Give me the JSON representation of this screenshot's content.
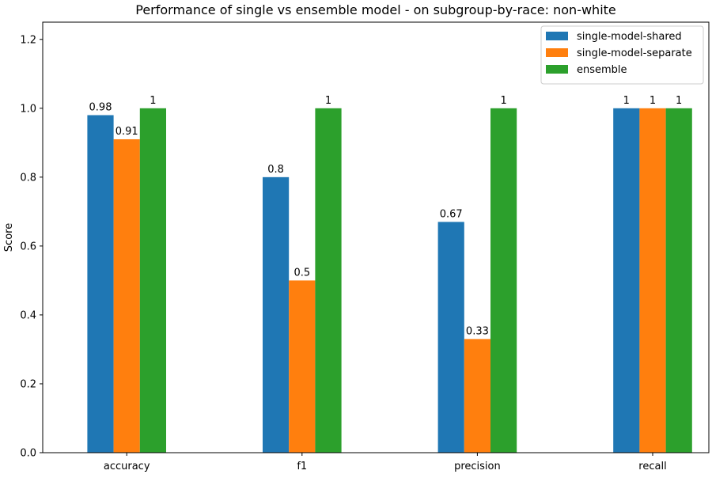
{
  "chart_data": {
    "type": "bar",
    "title": "Performance of single vs ensemble model - on subgroup-by-race: non-white",
    "xlabel": "",
    "ylabel": "Score",
    "ylim": [
      0,
      1.25
    ],
    "yticks": [
      0.0,
      0.2,
      0.4,
      0.6,
      0.8,
      1.0,
      1.2
    ],
    "ytick_labels": [
      "0.0",
      "0.2",
      "0.4",
      "0.6",
      "0.8",
      "1.0",
      "1.2"
    ],
    "categories": [
      "accuracy",
      "f1",
      "precision",
      "recall"
    ],
    "series": [
      {
        "name": "single-model-shared",
        "color": "#1f77b4",
        "values": [
          0.98,
          0.8,
          0.67,
          1
        ],
        "labels": [
          "0.98",
          "0.8",
          "0.67",
          "1"
        ]
      },
      {
        "name": "single-model-separate",
        "color": "#ff7f0e",
        "values": [
          0.91,
          0.5,
          0.33,
          1
        ],
        "labels": [
          "0.91",
          "0.5",
          "0.33",
          "1"
        ]
      },
      {
        "name": "ensemble",
        "color": "#2ca02c",
        "values": [
          1,
          1,
          1,
          1
        ],
        "labels": [
          "1",
          "1",
          "1",
          "1"
        ]
      }
    ],
    "legend_position": "top-right",
    "grid": false
  }
}
